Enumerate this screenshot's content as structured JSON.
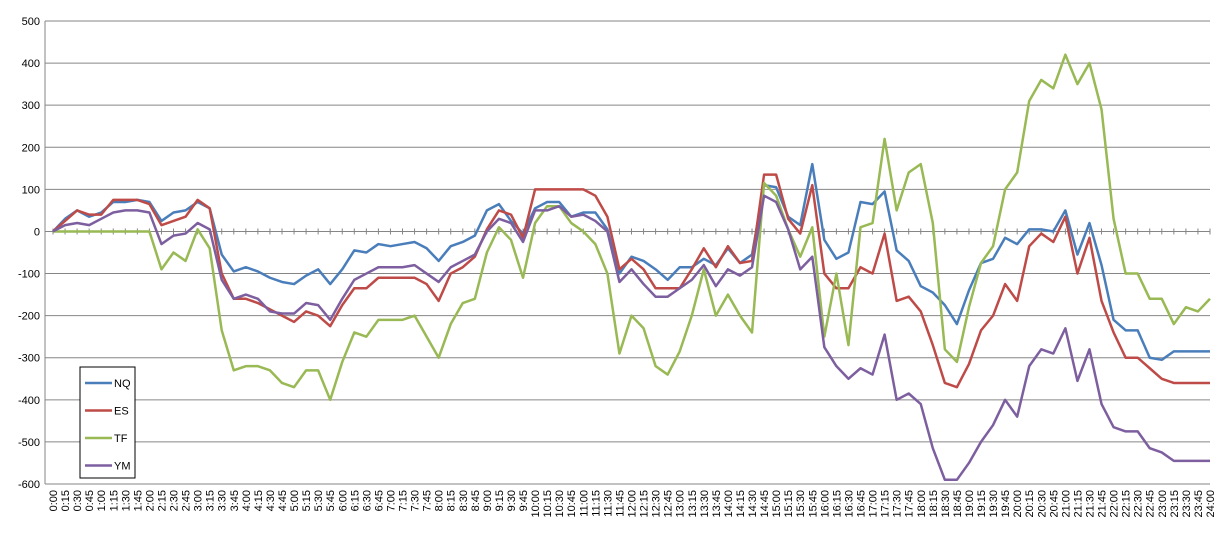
{
  "chart_data": {
    "type": "line",
    "categories": [
      "0:00",
      "0:15",
      "0:30",
      "0:45",
      "1:00",
      "1:15",
      "1:30",
      "1:45",
      "2:00",
      "2:15",
      "2:30",
      "2:45",
      "3:00",
      "3:15",
      "3:30",
      "3:45",
      "4:00",
      "4:15",
      "4:30",
      "4:45",
      "5:00",
      "5:15",
      "5:30",
      "5:45",
      "6:00",
      "6:15",
      "6:30",
      "6:45",
      "7:00",
      "7:15",
      "7:30",
      "7:45",
      "8:00",
      "8:15",
      "8:30",
      "8:45",
      "9:00",
      "9:15",
      "9:30",
      "9:45",
      "10:00",
      "10:15",
      "10:30",
      "10:45",
      "11:00",
      "11:15",
      "11:30",
      "11:45",
      "12:00",
      "12:15",
      "12:30",
      "12:45",
      "13:00",
      "13:15",
      "13:30",
      "13:45",
      "14:00",
      "14:15",
      "14:30",
      "14:45",
      "15:00",
      "15:15",
      "15:30",
      "15:45",
      "16:00",
      "16:15",
      "16:30",
      "16:45",
      "17:00",
      "17:15",
      "17:30",
      "17:45",
      "18:00",
      "18:15",
      "18:30",
      "18:45",
      "19:00",
      "19:15",
      "19:30",
      "19:45",
      "20:00",
      "20:15",
      "20:30",
      "20:45",
      "21:00",
      "21:15",
      "21:30",
      "21:45",
      "22:00",
      "22:15",
      "22:30",
      "22:45",
      "23:00",
      "23:15",
      "23:30",
      "23:45",
      "24:00"
    ],
    "series": [
      {
        "name": "NQ",
        "color": "#4a7ebb",
        "values": [
          0,
          30,
          50,
          35,
          45,
          70,
          70,
          75,
          70,
          25,
          45,
          50,
          70,
          55,
          -55,
          -95,
          -85,
          -95,
          -110,
          -120,
          -125,
          -105,
          -90,
          -125,
          -90,
          -45,
          -50,
          -30,
          -35,
          -30,
          -25,
          -40,
          -70,
          -35,
          -25,
          -10,
          50,
          65,
          25,
          -5,
          55,
          70,
          70,
          35,
          45,
          45,
          5,
          -100,
          -60,
          -70,
          -90,
          -115,
          -85,
          -85,
          -65,
          -80,
          -40,
          -75,
          -55,
          110,
          105,
          35,
          15,
          160,
          -20,
          -65,
          -50,
          70,
          65,
          95,
          -45,
          -70,
          -130,
          -145,
          -175,
          -220,
          -140,
          -75,
          -65,
          -15,
          -30,
          5,
          5,
          0,
          50,
          -55,
          20,
          -80,
          -210,
          -235,
          -235,
          -300,
          -305,
          -285,
          -285,
          -285,
          -285
        ]
      },
      {
        "name": "ES",
        "color": "#be4b48",
        "values": [
          0,
          25,
          50,
          40,
          40,
          75,
          75,
          75,
          65,
          15,
          25,
          35,
          75,
          55,
          -100,
          -160,
          -160,
          -170,
          -185,
          -200,
          -215,
          -190,
          -200,
          -225,
          -175,
          -135,
          -135,
          -110,
          -110,
          -110,
          -110,
          -125,
          -165,
          -100,
          -85,
          -60,
          5,
          50,
          40,
          -15,
          100,
          100,
          100,
          100,
          100,
          85,
          35,
          -90,
          -65,
          -90,
          -135,
          -135,
          -135,
          -90,
          -40,
          -85,
          -35,
          -75,
          -70,
          135,
          135,
          30,
          -5,
          110,
          -100,
          -135,
          -135,
          -85,
          -100,
          -5,
          -165,
          -155,
          -190,
          -270,
          -360,
          -370,
          -315,
          -235,
          -200,
          -125,
          -165,
          -35,
          -5,
          -25,
          35,
          -100,
          -15,
          -165,
          -240,
          -300,
          -300,
          -325,
          -350,
          -360,
          -360,
          -360,
          -360
        ]
      },
      {
        "name": "TF",
        "color": "#98b954",
        "values": [
          0,
          0,
          0,
          0,
          0,
          0,
          0,
          0,
          0,
          -90,
          -50,
          -70,
          5,
          -40,
          -235,
          -330,
          -320,
          -320,
          -330,
          -360,
          -370,
          -330,
          -330,
          -400,
          -310,
          -240,
          -250,
          -210,
          -210,
          -210,
          -200,
          -250,
          -300,
          -220,
          -170,
          -160,
          -50,
          10,
          -20,
          -110,
          20,
          60,
          60,
          20,
          0,
          -30,
          -100,
          -290,
          -200,
          -230,
          -320,
          -340,
          -285,
          -200,
          -90,
          -200,
          -150,
          -200,
          -240,
          115,
          85,
          5,
          -60,
          10,
          -250,
          -100,
          -270,
          10,
          20,
          220,
          50,
          140,
          160,
          20,
          -280,
          -310,
          -180,
          -75,
          -35,
          100,
          140,
          310,
          360,
          340,
          420,
          350,
          400,
          290,
          30,
          -100,
          -100,
          -160,
          -160,
          -220,
          -180,
          -190,
          -160
        ]
      },
      {
        "name": "YM",
        "color": "#7d5fa0",
        "values": [
          0,
          15,
          20,
          15,
          30,
          45,
          50,
          50,
          45,
          -30,
          -10,
          -5,
          20,
          5,
          -115,
          -160,
          -150,
          -160,
          -190,
          -195,
          -195,
          -170,
          -175,
          -210,
          -160,
          -115,
          -100,
          -85,
          -85,
          -85,
          -80,
          -100,
          -120,
          -85,
          -70,
          -55,
          0,
          30,
          20,
          -25,
          50,
          50,
          60,
          35,
          40,
          25,
          0,
          -120,
          -90,
          -125,
          -155,
          -155,
          -135,
          -115,
          -80,
          -130,
          -90,
          -105,
          -85,
          85,
          70,
          5,
          -90,
          -60,
          -275,
          -320,
          -350,
          -325,
          -340,
          -245,
          -400,
          -385,
          -410,
          -515,
          -590,
          -590,
          -550,
          -500,
          -460,
          -400,
          -440,
          -320,
          -280,
          -290,
          -230,
          -355,
          -280,
          -410,
          -465,
          -475,
          -475,
          -515,
          -525,
          -545,
          -545,
          -545,
          -545
        ]
      }
    ],
    "ylim": [
      -600,
      500
    ],
    "yticks": [
      -600,
      -500,
      -400,
      -300,
      -200,
      -100,
      0,
      100,
      200,
      300,
      400,
      500
    ],
    "grid": true,
    "legend": "bottom-left"
  }
}
